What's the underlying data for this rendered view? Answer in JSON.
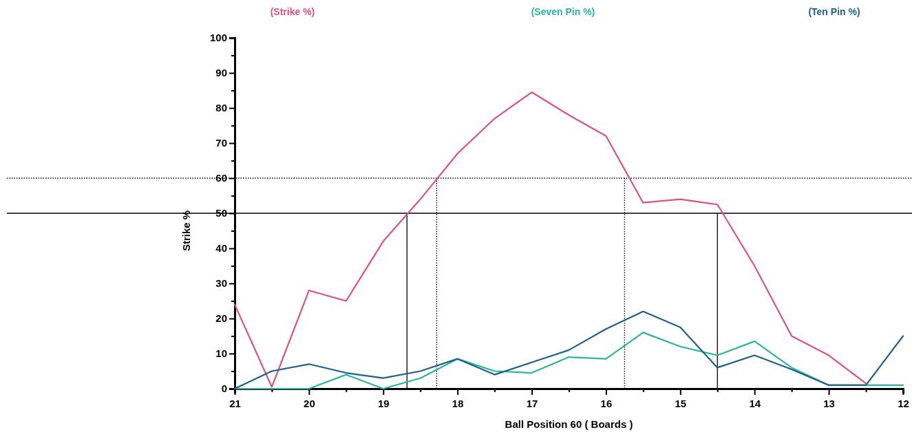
{
  "chart_data": {
    "type": "line",
    "xlabel": "Ball Position 60 ( Boards )",
    "ylabel": "Strike %",
    "x": [
      21,
      20.5,
      20,
      19.5,
      19,
      18.5,
      18,
      17.5,
      17,
      16.5,
      16,
      15.5,
      15,
      14.5,
      14,
      13.5,
      13,
      12.5,
      12
    ],
    "series": [
      {
        "name": "(Strike %)",
        "color": "#e0517a",
        "values": [
          24,
          0.5,
          28,
          25,
          42,
          54,
          67,
          77,
          84.5,
          78,
          72,
          53,
          54,
          52.5,
          35,
          15,
          9.5,
          1.5,
          null
        ]
      },
      {
        "name": "(Seven Pin %)",
        "color": "#2bb59c",
        "values": [
          0,
          0,
          0,
          4,
          0,
          3,
          8.5,
          5,
          4.5,
          9,
          8.5,
          16,
          12,
          9.5,
          13.5,
          6,
          1,
          1,
          1
        ]
      },
      {
        "name": "(Ten Pin %)",
        "color": "#1d5f8f",
        "values": [
          0,
          5,
          7,
          4.5,
          3,
          5,
          8.5,
          4,
          7.5,
          11,
          17,
          22,
          17.5,
          6,
          9.5,
          5.5,
          1,
          1,
          15
        ]
      }
    ],
    "xlim": [
      21,
      12
    ],
    "xticks": [
      21,
      {
        "value": 20.5,
        "label": null
      },
      20,
      {
        "value": 19.5,
        "label": null
      },
      19,
      {
        "value": 18.5,
        "label": null
      },
      18,
      {
        "value": 17.5,
        "label": null
      },
      17,
      {
        "value": 16.5,
        "label": null
      },
      16,
      {
        "value": 15.5,
        "label": null
      },
      15,
      {
        "value": 14.5,
        "label": null
      },
      14,
      {
        "value": 13.5,
        "label": null
      },
      13,
      {
        "value": 12.5,
        "label": null
      },
      12
    ],
    "ylim": [
      0,
      100
    ],
    "yticks": [
      0,
      {
        "value": 5,
        "label": null
      },
      10,
      {
        "value": 15,
        "label": null
      },
      20,
      {
        "value": 25,
        "label": null
      },
      30,
      {
        "value": 35,
        "label": null
      },
      40,
      {
        "value": 45,
        "label": null
      },
      50,
      {
        "value": 55,
        "label": null
      },
      60,
      {
        "value": 65,
        "label": null
      },
      70,
      {
        "value": 75,
        "label": null
      },
      80,
      {
        "value": 85,
        "label": null
      },
      90,
      {
        "value": 95,
        "label": null
      },
      100
    ],
    "ref_lines": [
      {
        "axis": "y",
        "value": 50,
        "color": "#000000",
        "line_style": "solid"
      },
      {
        "axis": "y",
        "value": 60,
        "color": "#000000",
        "line_style": "dotted"
      },
      {
        "axis": "x",
        "value": 18.68,
        "color": "#000000",
        "line_style": "solid"
      },
      {
        "axis": "x",
        "value": 14.5,
        "color": "#000000",
        "line_style": "solid"
      },
      {
        "axis": "x",
        "value": 18.28,
        "color": "#000000",
        "line_style": "dotted"
      },
      {
        "axis": "x",
        "value": 15.75,
        "color": "#000000",
        "line_style": "dotted"
      }
    ],
    "grid": false,
    "legend": "top",
    "marker": "none",
    "line_style": "solid"
  }
}
